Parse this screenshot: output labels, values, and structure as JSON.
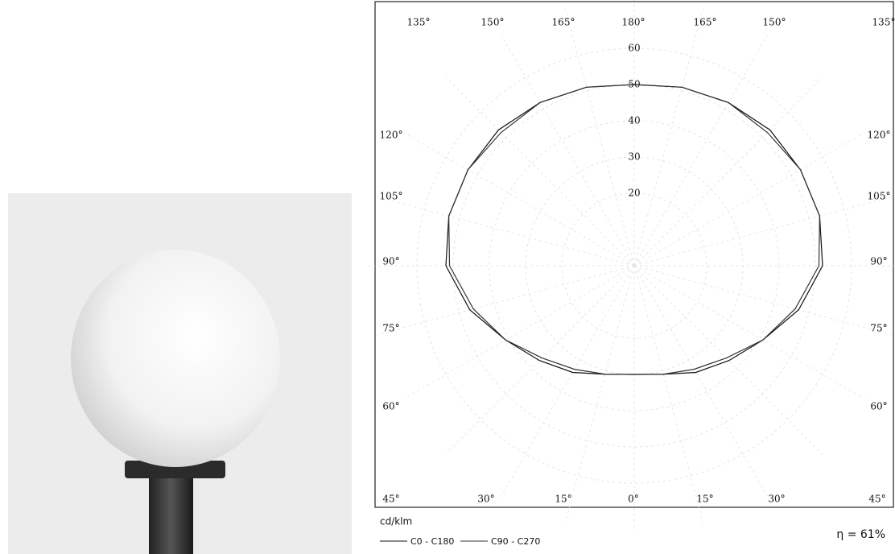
{
  "chart_data": {
    "type": "polar",
    "unit_label": "cd/klm",
    "efficiency_label": "η = 61%",
    "angle_labels": {
      "top": [
        "135°",
        "150°",
        "165°",
        "180°",
        "165°",
        "150°",
        "135°"
      ],
      "left": [
        "120°",
        "105°",
        "90°",
        "75°",
        "60°"
      ],
      "right": [
        "120°",
        "105°",
        "90°",
        "75°",
        "60°"
      ],
      "bottom": [
        "45°",
        "30°",
        "15°",
        "0°",
        "15°",
        "30°",
        "45°"
      ]
    },
    "x": [
      0,
      15,
      30,
      45,
      60,
      75,
      90,
      105,
      120,
      135,
      150,
      165,
      180
    ],
    "series": [
      {
        "name": "C0 - C180",
        "color": "#111111",
        "values": [
          30,
          31,
          34,
          37,
          41,
          47,
          52,
          53,
          53,
          53,
          52,
          51,
          50
        ]
      },
      {
        "name": "C90 - C270",
        "color": "#333333",
        "values": [
          30,
          31,
          33,
          36,
          41,
          46,
          51,
          53,
          53,
          52,
          52,
          51,
          50
        ]
      }
    ],
    "rlim": [
      0,
      70
    ],
    "rticks": [
      20,
      30,
      40,
      50,
      60
    ],
    "grid": true
  }
}
